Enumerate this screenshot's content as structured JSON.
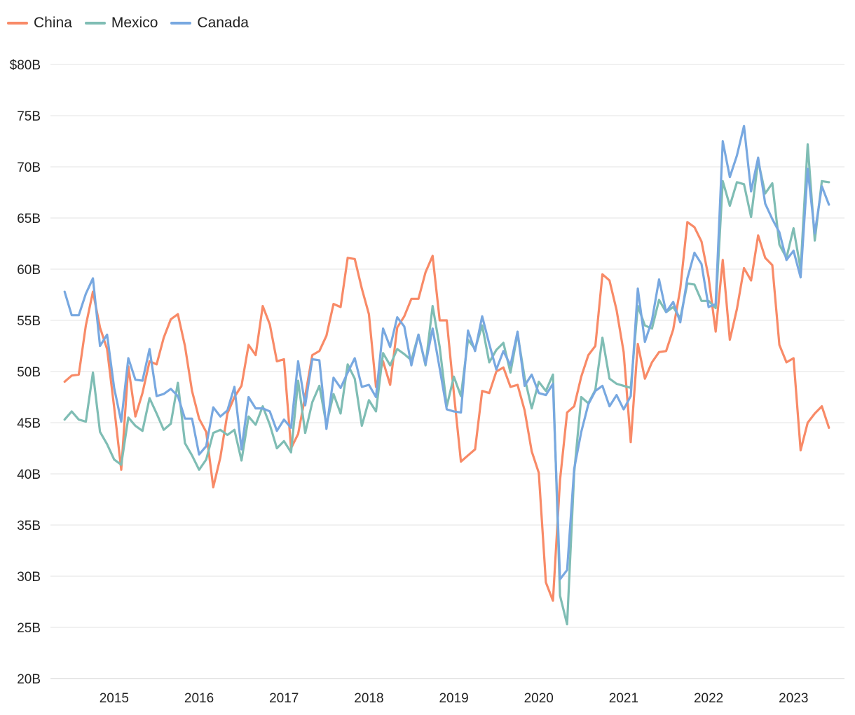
{
  "chart_data": {
    "type": "line",
    "title": "",
    "xlabel": "",
    "ylabel": "",
    "ylim": [
      20,
      80
    ],
    "xlim": [
      2014.25,
      2023.6
    ],
    "y_ticks": [
      20,
      25,
      30,
      35,
      40,
      45,
      50,
      55,
      60,
      65,
      70,
      75,
      80
    ],
    "y_tick_labels": [
      "20B",
      "25B",
      "30B",
      "35B",
      "40B",
      "45B",
      "50B",
      "55B",
      "60B",
      "65B",
      "70B",
      "75B",
      "$80B"
    ],
    "x_ticks": [
      2015,
      2016,
      2017,
      2018,
      2019,
      2020,
      2021,
      2022,
      2023
    ],
    "x_tick_labels": [
      "2015",
      "2016",
      "2017",
      "2018",
      "2019",
      "2020",
      "2021",
      "2022",
      "2023"
    ],
    "grid": "horizontal",
    "legend_position": "top-left",
    "start_date": "2014-06",
    "interval": "monthly",
    "series": [
      {
        "name": "China",
        "color": "#f88a67",
        "values": [
          49.0,
          49.6,
          49.7,
          54.5,
          57.8,
          54.3,
          52.2,
          46.5,
          40.4,
          50.5,
          45.6,
          47.9,
          51.0,
          50.7,
          53.3,
          55.1,
          55.6,
          52.5,
          48.1,
          45.4,
          44.1,
          38.7,
          41.6,
          45.9,
          47.5,
          48.6,
          52.6,
          51.6,
          56.4,
          54.6,
          51.0,
          51.2,
          42.5,
          43.9,
          47.6,
          51.6,
          52.0,
          53.5,
          56.6,
          56.3,
          61.1,
          61.0,
          58.1,
          55.6,
          48.5,
          51.0,
          48.7,
          54.3,
          55.4,
          57.1,
          57.1,
          59.7,
          61.3,
          55.0,
          55.0,
          47.9,
          41.2,
          41.8,
          42.4,
          48.1,
          47.9,
          50.0,
          50.4,
          48.5,
          48.7,
          46.2,
          42.2,
          40.1,
          29.4,
          27.6,
          39.4,
          46.0,
          46.6,
          49.5,
          51.6,
          52.5,
          59.5,
          58.9,
          56.0,
          51.9,
          43.1,
          52.7,
          49.3,
          50.9,
          51.9,
          52.0,
          54.1,
          58.1,
          64.6,
          64.1,
          62.7,
          59.2,
          53.9,
          60.9,
          53.1,
          56.1,
          60.1,
          58.9,
          63.3,
          61.1,
          60.4,
          52.6,
          50.9,
          51.3,
          42.3,
          45.0,
          45.9,
          46.6,
          44.5
        ]
      },
      {
        "name": "Mexico",
        "color": "#7fbdb4",
        "values": [
          45.3,
          46.1,
          45.3,
          45.1,
          49.9,
          44.1,
          42.9,
          41.4,
          40.9,
          45.5,
          44.7,
          44.2,
          47.4,
          45.9,
          44.3,
          44.9,
          48.9,
          43.0,
          41.8,
          40.4,
          41.4,
          44.0,
          44.3,
          43.8,
          44.3,
          41.3,
          45.6,
          44.8,
          46.6,
          44.8,
          42.5,
          43.2,
          42.1,
          49.1,
          44.0,
          47.0,
          48.6,
          44.8,
          47.8,
          45.9,
          50.7,
          49.3,
          44.7,
          47.2,
          46.1,
          51.8,
          50.6,
          52.2,
          51.7,
          51.1,
          53.6,
          50.6,
          56.4,
          52.4,
          46.6,
          49.5,
          47.6,
          53.1,
          52.2,
          54.5,
          50.9,
          52.1,
          52.8,
          49.9,
          53.7,
          49.4,
          46.4,
          49.0,
          48.1,
          49.7,
          28.1,
          25.3,
          40.1,
          47.5,
          46.9,
          48.2,
          53.3,
          49.3,
          48.8,
          48.6,
          48.4,
          56.4,
          54.5,
          54.2,
          57.0,
          55.8,
          56.3,
          55.2,
          58.6,
          58.5,
          56.9,
          56.9,
          56.2,
          68.6,
          66.2,
          68.5,
          68.3,
          65.1,
          70.6,
          67.4,
          68.4,
          62.4,
          61.1,
          64.0,
          60.0,
          72.2,
          62.8,
          68.6,
          68.5
        ]
      },
      {
        "name": "Canada",
        "color": "#78a8e0",
        "values": [
          57.8,
          55.5,
          55.5,
          57.6,
          59.1,
          52.5,
          53.6,
          48.4,
          45.1,
          51.3,
          49.2,
          49.1,
          52.2,
          47.6,
          47.8,
          48.3,
          47.6,
          45.4,
          45.4,
          41.9,
          42.7,
          46.5,
          45.6,
          46.2,
          48.5,
          42.4,
          47.5,
          46.4,
          46.4,
          46.1,
          44.2,
          45.3,
          44.5,
          51.0,
          46.7,
          51.2,
          51.1,
          44.4,
          49.4,
          48.4,
          49.9,
          51.3,
          48.5,
          48.7,
          47.5,
          54.2,
          52.4,
          55.3,
          54.4,
          50.6,
          53.6,
          50.7,
          54.2,
          50.3,
          46.3,
          46.1,
          46.0,
          54.0,
          52.0,
          55.4,
          52.7,
          50.2,
          52.0,
          50.6,
          53.9,
          48.6,
          49.7,
          47.9,
          47.7,
          48.8,
          29.7,
          30.6,
          40.5,
          44.1,
          46.8,
          48.1,
          48.6,
          46.6,
          47.7,
          46.3,
          47.6,
          58.1,
          52.9,
          55.0,
          59.0,
          55.8,
          56.8,
          54.8,
          59.1,
          61.6,
          60.5,
          56.3,
          56.6,
          72.5,
          69.0,
          71.1,
          74.0,
          67.6,
          70.9,
          66.4,
          64.9,
          63.6,
          60.9,
          61.8,
          59.2,
          69.8,
          63.5,
          68.1,
          66.3
        ]
      }
    ]
  }
}
